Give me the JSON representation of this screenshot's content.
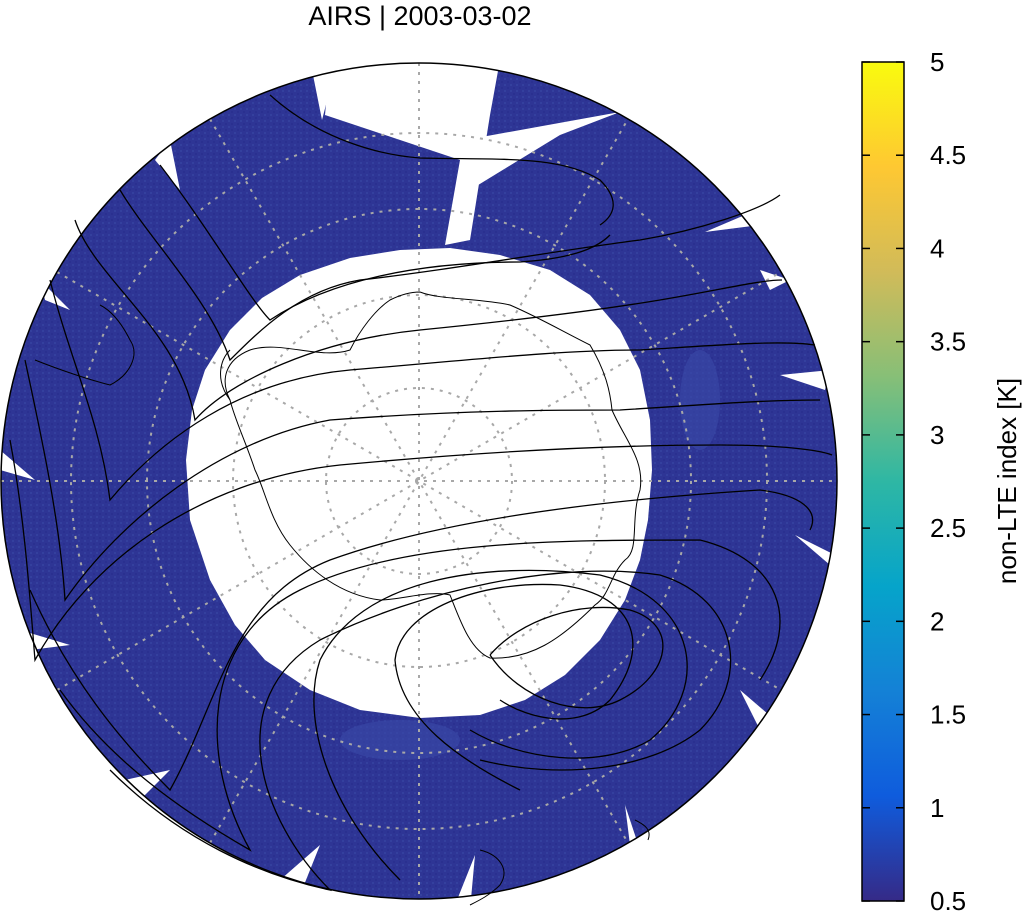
{
  "title": "AIRS | 2003-03-02",
  "colors": {
    "data_fill": "#2e3595",
    "data_fill_light": "#3a4aa8",
    "gap_fill": "#ffffff",
    "grid": "#a0a0a0",
    "coast": "#000000",
    "contour": "#000000"
  },
  "map": {
    "projection": "south polar stereographic",
    "grid_style": "dotted"
  },
  "colorbar": {
    "label": "non-LTE index [K]",
    "min": 0.5,
    "max": 5,
    "ticks": [
      "5",
      "4.5",
      "4",
      "3.5",
      "3",
      "2.5",
      "2",
      "1.5",
      "1",
      "0.5"
    ],
    "gradient": [
      "#352a87",
      "#0f5cdd",
      "#1481d6",
      "#06a4ca",
      "#2eb7a4",
      "#87bf77",
      "#d1bb59",
      "#fec832",
      "#f9fb0e"
    ]
  }
}
